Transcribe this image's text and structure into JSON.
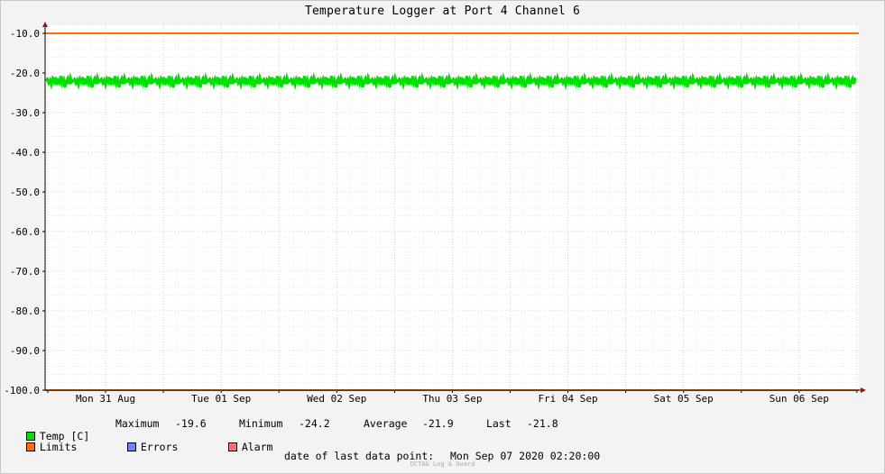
{
  "chart_data": {
    "type": "line",
    "title": "Temperature Logger at Port 4 Channel 6",
    "ylim": [
      -100,
      -10
    ],
    "y_ticks": [
      "-10.0",
      "-20.0",
      "-30.0",
      "-40.0",
      "-50.0",
      "-60.0",
      "-70.0",
      "-80.0",
      "-90.0",
      "-100.0"
    ],
    "x_labels": [
      "Mon 31 Aug",
      "Tue 01 Sep",
      "Wed 02 Sep",
      "Thu 03 Sep",
      "Fri 04 Sep",
      "Sat 05 Sep",
      "Sun 06 Sep"
    ],
    "grid": true,
    "series": [
      {
        "name": "Temp [C]",
        "color": "#00e000",
        "pattern_values": [
          -22.0,
          -21.6,
          -22.5,
          -21.8,
          -22.9,
          -21.5,
          -22.2,
          -21.1,
          -23.0,
          -21.9,
          -22.4,
          -20.8,
          -22.6,
          -21.7,
          -23.6,
          -22.1,
          -21.4,
          -22.8,
          -21.2,
          -22.3
        ]
      },
      {
        "name": "Limits",
        "color": "#ff7000",
        "values": [
          -10.0,
          -100.0
        ]
      }
    ],
    "legend": {
      "temp_label": "Temp [C]",
      "maximum_label": "Maximum",
      "maximum_value": "-19.6",
      "minimum_label": "Minimum",
      "minimum_value": "-24.2",
      "average_label": "Average",
      "average_value": "-21.9",
      "last_label": "Last",
      "last_value": "-21.8",
      "limits_label": "Limits",
      "errors_label": "Errors",
      "alarm_label": "Alarm",
      "colors": {
        "temp": "#00e000",
        "limits": "#ff7000",
        "errors": "#6e82ff",
        "alarm": "#ff7070"
      }
    }
  },
  "footer": {
    "last_data_label": "date of last data point:",
    "last_data_value": "Mon Sep 07 2020 02:20:00",
    "watermark": "OCTA& Log & Guard"
  }
}
